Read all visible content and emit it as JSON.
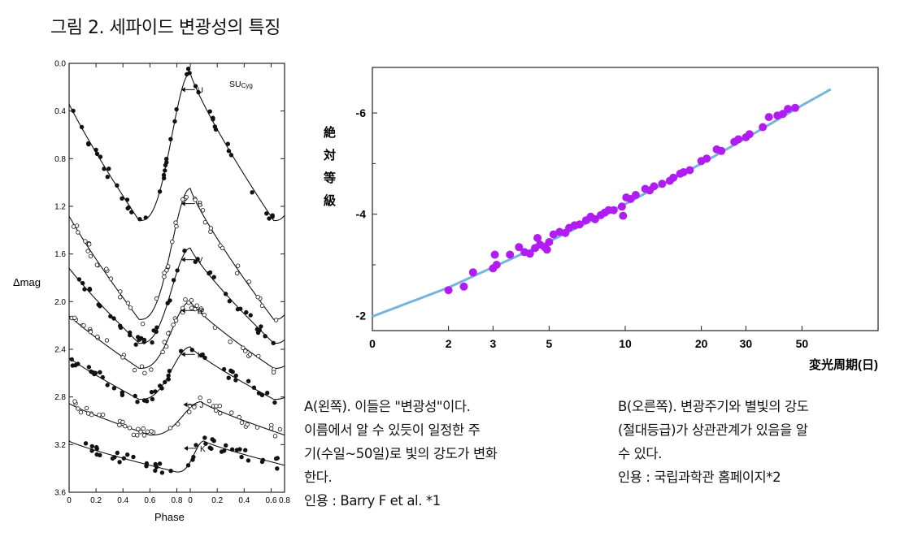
{
  "page": {
    "title": "그림 2. 세파이드 변광성의 특징"
  },
  "caption_a": {
    "lines": [
      "A(왼쪽). 이들은 \"변광성\"이다.",
      "이름에서 알 수 있듯이 일정한 주",
      "기(수일~50일)로 빛의 강도가 변화",
      "한다."
    ],
    "citation": "인용 : Barry F et al. *1"
  },
  "caption_b": {
    "lines": [
      "B(오른쪽). 변광주기와 별빛의 강도",
      "(절대등급)가 상관관계가 있음을 알",
      "수 있다."
    ],
    "citation": "인용 : 국립과학관 홈페이지*2"
  },
  "chart_data": [
    {
      "type": "scatter",
      "title": "SUCyg",
      "title_main": "SU",
      "title_sub": "Cyg",
      "xlabel": "Phase",
      "ylabel": "Δmag",
      "xlim": [
        0.0,
        0.8
      ],
      "ylim": [
        3.6,
        0.0
      ],
      "x_ticks": [
        "0",
        "0.2",
        "0.4",
        "0.6",
        "0.8",
        "0",
        "0.2",
        "0.4",
        "0.6",
        "0.8"
      ],
      "y_ticks": [
        "0.0",
        "0.4",
        "0.8",
        "1.2",
        "1.6",
        "2.0",
        "2.4",
        "2.8",
        "3.2",
        "3.6"
      ],
      "axis_note": "Phase axis runs 0 to 0.8, then 0 to 0.8 again (two cycles).",
      "series": [
        {
          "name": "U",
          "filled": true,
          "mean": 0.7,
          "amplitude": 0.62,
          "peak_phase": 0.0,
          "min_phase": 0.62,
          "curve": [
            [
              0.12,
              0.2
            ],
            [
              0.2,
              0.32
            ],
            [
              0.4,
              0.55
            ],
            [
              0.6,
              0.7
            ],
            [
              0.8,
              0.82
            ],
            [
              1.0,
              0.95
            ],
            [
              1.2,
              1.1
            ],
            [
              1.4,
              1.24
            ],
            [
              1.5,
              1.31
            ],
            [
              1.62,
              1.33
            ],
            [
              1.7,
              1.27
            ],
            [
              1.8,
              1.1
            ],
            [
              1.9,
              0.7
            ],
            [
              1.95,
              0.35
            ],
            [
              2.0,
              0.08
            ],
            [
              2.05,
              0.22
            ],
            [
              2.1,
              0.45
            ],
            [
              2.2,
              0.72
            ],
            [
              2.4,
              0.92
            ],
            [
              2.6,
              1.12
            ],
            [
              2.8,
              1.27
            ],
            [
              2.9,
              1.31
            ],
            [
              2.98,
              1.2
            ],
            [
              3.1,
              1.05
            ]
          ]
        },
        {
          "name": "B",
          "filled": false,
          "mean": 1.6,
          "amplitude": 0.55,
          "peak_phase": 0.0,
          "min_phase": 0.62
        },
        {
          "name": "V",
          "filled": true,
          "mean": 1.95,
          "amplitude": 0.4,
          "peak_phase": 0.0,
          "min_phase": 0.62
        },
        {
          "name": "R",
          "filled": false,
          "mean": 2.28,
          "amplitude": 0.28,
          "peak_phase": 0.0,
          "min_phase": 0.62
        },
        {
          "name": "I",
          "filled": true,
          "mean": 2.6,
          "amplitude": 0.22,
          "peak_phase": 0.0,
          "min_phase": 0.62
        },
        {
          "name": "J",
          "filled": false,
          "mean": 2.98,
          "amplitude": 0.14,
          "peak_phase": 0.08,
          "min_phase": 0.62
        },
        {
          "name": "K",
          "filled": true,
          "mean": 3.3,
          "amplitude": 0.13,
          "peak_phase": 0.1,
          "min_phase": 0.8
        }
      ]
    },
    {
      "type": "scatter",
      "title": "",
      "xlabel": "変光周期(日)",
      "ylabel": "絶対等級",
      "x_scale": "log",
      "x_ticks": [
        {
          "value": 0,
          "label": "0"
        },
        {
          "value": 2,
          "label": "2"
        },
        {
          "value": 3,
          "label": "3"
        },
        {
          "value": 5,
          "label": "5"
        },
        {
          "value": 10,
          "label": "10"
        },
        {
          "value": 20,
          "label": "20"
        },
        {
          "value": 30,
          "label": "30"
        },
        {
          "value": 50,
          "label": "50"
        }
      ],
      "y_ticks": [
        {
          "value": -2,
          "label": "-2"
        },
        {
          "value": -4,
          "label": "-4"
        },
        {
          "value": -6,
          "label": "-6"
        }
      ],
      "ylim": [
        -1.7,
        -6.9
      ],
      "xlim_days": [
        1.0,
        100.0
      ],
      "point_color": "#b11cf2",
      "line_color": "#74b4de",
      "fit_line": [
        [
          1.0,
          -1.98
        ],
        [
          2.0,
          -2.55
        ],
        [
          5.0,
          -3.46
        ],
        [
          10.0,
          -4.2
        ],
        [
          20.0,
          -5.0
        ],
        [
          30.0,
          -5.5
        ],
        [
          50.0,
          -6.15
        ],
        [
          60.0,
          -6.37
        ],
        [
          65.0,
          -6.47
        ]
      ],
      "points": [
        [
          2.0,
          -2.5
        ],
        [
          2.3,
          -2.57
        ],
        [
          2.5,
          -2.85
        ],
        [
          3.0,
          -2.93
        ],
        [
          3.05,
          -3.2
        ],
        [
          3.1,
          -3.0
        ],
        [
          3.5,
          -3.2
        ],
        [
          3.8,
          -3.35
        ],
        [
          4.0,
          -3.25
        ],
        [
          4.2,
          -3.22
        ],
        [
          4.4,
          -3.33
        ],
        [
          4.5,
          -3.53
        ],
        [
          4.6,
          -3.4
        ],
        [
          4.8,
          -3.35
        ],
        [
          4.9,
          -3.3
        ],
        [
          5.0,
          -3.45
        ],
        [
          5.2,
          -3.6
        ],
        [
          5.5,
          -3.65
        ],
        [
          5.8,
          -3.63
        ],
        [
          6.0,
          -3.73
        ],
        [
          6.3,
          -3.78
        ],
        [
          6.6,
          -3.8
        ],
        [
          7.0,
          -3.88
        ],
        [
          7.3,
          -3.95
        ],
        [
          7.6,
          -3.9
        ],
        [
          8.0,
          -3.98
        ],
        [
          8.3,
          -4.03
        ],
        [
          8.6,
          -4.08
        ],
        [
          9.0,
          -4.08
        ],
        [
          9.7,
          -4.15
        ],
        [
          9.8,
          -3.97
        ],
        [
          10.1,
          -4.33
        ],
        [
          10.5,
          -4.3
        ],
        [
          11.0,
          -4.38
        ],
        [
          12.0,
          -4.5
        ],
        [
          12.5,
          -4.47
        ],
        [
          13.0,
          -4.55
        ],
        [
          14.0,
          -4.6
        ],
        [
          15.0,
          -4.66
        ],
        [
          15.5,
          -4.72
        ],
        [
          16.5,
          -4.8
        ],
        [
          17.0,
          -4.83
        ],
        [
          18.0,
          -4.87
        ],
        [
          20.0,
          -5.05
        ],
        [
          21.0,
          -5.1
        ],
        [
          23.0,
          -5.28
        ],
        [
          24.0,
          -5.25
        ],
        [
          27.0,
          -5.43
        ],
        [
          28.0,
          -5.48
        ],
        [
          30.0,
          -5.52
        ],
        [
          31.0,
          -5.58
        ],
        [
          35.0,
          -5.72
        ],
        [
          37.0,
          -5.92
        ],
        [
          40.0,
          -5.95
        ],
        [
          42.0,
          -5.98
        ],
        [
          44.0,
          -6.08
        ],
        [
          47.0,
          -6.1
        ]
      ]
    }
  ]
}
